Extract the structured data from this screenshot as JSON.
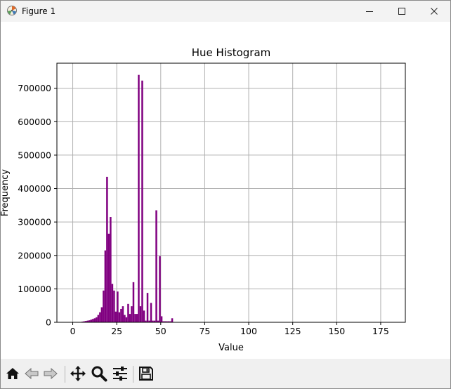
{
  "window": {
    "title": "Figure 1"
  },
  "chart_data": {
    "type": "bar",
    "title": "Hue Histogram",
    "xlabel": "Value",
    "ylabel": "Frequency",
    "xlim": [
      -9,
      189
    ],
    "ylim": [
      0,
      775000
    ],
    "grid": true,
    "color": "#800080",
    "xticks": [
      0,
      25,
      50,
      75,
      100,
      125,
      150,
      175
    ],
    "yticks": [
      0,
      100000,
      200000,
      300000,
      400000,
      500000,
      600000,
      700000
    ],
    "bin_width": 1,
    "bins": [
      5,
      6,
      7,
      8,
      9,
      10,
      11,
      12,
      13,
      14,
      15,
      16,
      17,
      18,
      19,
      20,
      21,
      22,
      23,
      24,
      25,
      26,
      27,
      28,
      29,
      30,
      31,
      32,
      33,
      34,
      35,
      36,
      37,
      38,
      39,
      40,
      41,
      42,
      43,
      44,
      45,
      46,
      47,
      48,
      49,
      50,
      51,
      52,
      53,
      54,
      55,
      56
    ],
    "values": [
      2000,
      3000,
      4000,
      5000,
      6000,
      8000,
      10000,
      12000,
      15000,
      22000,
      30000,
      45000,
      95000,
      215000,
      435000,
      265000,
      315000,
      115000,
      95000,
      32000,
      92000,
      30000,
      40000,
      48000,
      22000,
      15000,
      55000,
      25000,
      48000,
      120000,
      25000,
      25000,
      740000,
      48000,
      723000,
      35000,
      5000,
      88000,
      5000,
      58000,
      5000,
      5000,
      335000,
      5000,
      198000,
      18000,
      3000,
      3000,
      3000,
      3000,
      3000,
      12000
    ]
  },
  "toolbar": {
    "buttons": [
      {
        "name": "home-button",
        "icon": "home-icon"
      },
      {
        "name": "back-button",
        "icon": "arrow-left-icon"
      },
      {
        "name": "forward-button",
        "icon": "arrow-right-icon"
      },
      {
        "name": "pan-button",
        "icon": "move-icon"
      },
      {
        "name": "zoom-button",
        "icon": "magnifier-icon"
      },
      {
        "name": "configure-subplots-button",
        "icon": "sliders-icon"
      },
      {
        "name": "save-button",
        "icon": "floppy-icon"
      }
    ]
  }
}
